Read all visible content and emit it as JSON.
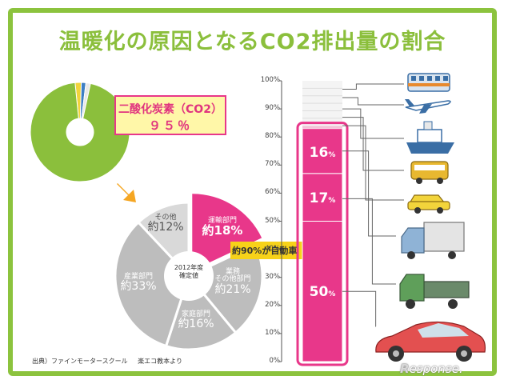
{
  "title": "温暖化の原因となるCO2排出量の割合",
  "co2_callout": {
    "line1": "二酸化炭素（CO2）",
    "line2": "９５％"
  },
  "pie_center": {
    "line1": "2012年度",
    "line2": "確定値"
  },
  "arrow_label": "約90%が自動車",
  "bar_labels": {
    "b16": "16",
    "b17": "17",
    "b50": "50",
    "unit": "%"
  },
  "source": {
    "left": "出典）ファインモータースクール",
    "right": "楽エコ教本より"
  },
  "logo": {
    "first": "R",
    "rest": "esponse."
  },
  "colors": {
    "green": "#8bbf3c",
    "pink": "#e8378a",
    "gray": "#bdbdbd",
    "light_gray": "#d9d9d9",
    "orange": "#f5a623",
    "callout_bg": "#fff7a8"
  },
  "chart_data": [
    {
      "type": "pie",
      "description_of": "donut",
      "title": "",
      "categories": [
        "二酸化炭素（CO2）",
        "",
        "",
        ""
      ],
      "values": [
        95,
        2,
        1.5,
        1.5
      ],
      "colors": [
        "#8bbf3c",
        "#f2d43b",
        "#3d7fc4",
        "#e8e8e8"
      ]
    },
    {
      "type": "pie",
      "title": "",
      "center_text": [
        "2012年度",
        "確定値"
      ],
      "categories": [
        "運輸部門",
        "業務その他部門",
        "家庭部門",
        "産業部門",
        "その他"
      ],
      "category_display": [
        [
          "運輸部門"
        ],
        [
          "業務",
          "その他部門"
        ],
        [
          "家庭部門"
        ],
        [
          "産業部門"
        ],
        [
          "その他"
        ]
      ],
      "values": [
        18,
        21,
        16,
        33,
        12
      ],
      "value_labels": [
        "約18%",
        "約21%",
        "約16%",
        "約33%",
        "約12%"
      ],
      "colors": [
        "#e8378a",
        "#bdbdbd",
        "#bdbdbd",
        "#bdbdbd",
        "#d9d9d9"
      ]
    },
    {
      "type": "bar",
      "stacked": true,
      "title": "",
      "ylabel": "",
      "ylim": [
        0,
        100
      ],
      "yticks": [
        "0%",
        "10%",
        "20%",
        "30%",
        "40%",
        "50%",
        "60%",
        "70%",
        "80%",
        "90%",
        "100%"
      ],
      "segments": [
        {
          "value": 50,
          "label": "50",
          "highlight": true
        },
        {
          "value": 17,
          "label": "17",
          "highlight": true
        },
        {
          "value": 16,
          "label": "16",
          "highlight": true
        },
        {
          "value": 1,
          "label": "",
          "highlight": false
        },
        {
          "value": 16,
          "label": "",
          "highlight": false
        }
      ],
      "icons": [
        "train-icon",
        "airplane-icon",
        "ship-icon",
        "bus-icon",
        "taxi-icon",
        "truck-icon",
        "small-truck-icon",
        "passenger-car-icon"
      ]
    }
  ]
}
